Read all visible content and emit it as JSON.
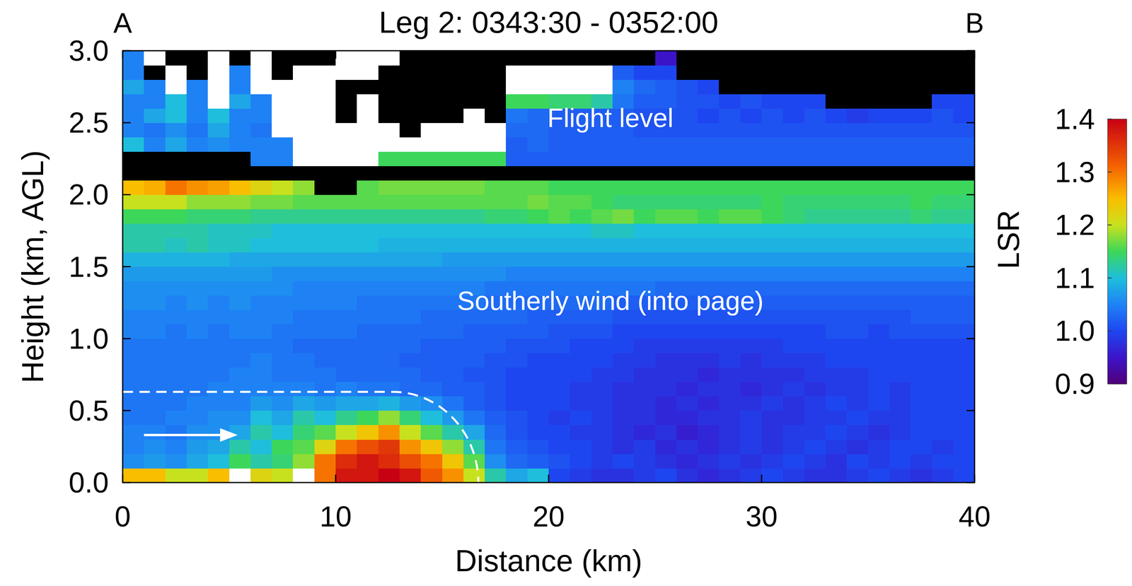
{
  "chart_data": {
    "type": "heatmap",
    "title": "Leg 2: 0343:30 - 0352:00",
    "corner_labels": [
      "A",
      "B"
    ],
    "x_label": "Distance (km)",
    "y_label": "Height (km, AGL)",
    "annotations": [
      "Flight level",
      "Southerly wind (into page)"
    ],
    "xlim": [
      0,
      40
    ],
    "ylim": [
      0,
      3
    ],
    "xticks": [
      0,
      10,
      20,
      30,
      40
    ],
    "yticks": [
      {
        "value": 0,
        "label": "0.0"
      },
      0.5,
      {
        "value": 1,
        "label": "1.0"
      },
      1.5,
      {
        "value": 2,
        "label": "2.0"
      },
      2.5,
      {
        "value": 3,
        "label": "3.0"
      }
    ],
    "grid": false,
    "x_bins": [
      0,
      1,
      2,
      3,
      4,
      5,
      6,
      7,
      8,
      9,
      10,
      11,
      12,
      13,
      14,
      15,
      16,
      17,
      18,
      19,
      20,
      21,
      22,
      23,
      24,
      25,
      26,
      27,
      28,
      29,
      30,
      31,
      32,
      33,
      34,
      35,
      36,
      37,
      38,
      39,
      40
    ],
    "y_bins": [
      0,
      0.1,
      0.2,
      0.3,
      0.4,
      0.5,
      0.6,
      0.7,
      0.8,
      0.9,
      1.0,
      1.1,
      1.2,
      1.3,
      1.4,
      1.5,
      1.6,
      1.7,
      1.8,
      1.9,
      2.0,
      2.1,
      2.2,
      2.3,
      2.4,
      2.5,
      2.6,
      2.7,
      2.8,
      2.9,
      3.0
    ],
    "colorbar": {
      "label": "LSR",
      "range": [
        0.9,
        1.4
      ],
      "ticks": [
        0.9,
        {
          "value": 1,
          "label": "1.0"
        },
        1.1,
        1.2,
        1.3,
        1.4
      ]
    },
    "cells": [
      [
        1.25,
        1.25,
        1.2,
        1.2,
        1.25,
        10,
        1.22,
        1.2,
        10,
        1.3,
        1.38,
        1.38,
        1.4,
        1.38,
        1.32,
        1.28,
        1.2,
        1.12,
        1.08,
        1.1,
        1.0,
        0.99,
        0.98,
        0.98,
        0.99,
        1.0,
        0.98,
        0.97,
        0.98,
        0.99,
        1.0,
        0.99,
        0.98,
        0.98,
        0.99,
        1.0,
        0.99,
        0.98,
        0.99,
        1.0
      ],
      [
        1.06,
        1.07,
        1.06,
        1.08,
        1.1,
        1.15,
        1.12,
        1.14,
        1.18,
        1.3,
        1.36,
        1.38,
        1.36,
        1.33,
        1.3,
        1.24,
        1.16,
        1.06,
        1.03,
        1.02,
        1.01,
        1.0,
        0.99,
        1.0,
        0.99,
        0.98,
        0.97,
        0.98,
        0.99,
        0.98,
        0.99,
        1.0,
        0.99,
        0.98,
        1.0,
        0.99,
        1.0,
        0.99,
        1.0,
        1.0
      ],
      [
        1.05,
        1.06,
        1.05,
        1.07,
        1.08,
        1.12,
        1.1,
        1.15,
        1.16,
        1.22,
        1.3,
        1.33,
        1.35,
        1.28,
        1.24,
        1.18,
        1.12,
        1.04,
        1.02,
        1.01,
        1.0,
        1.0,
        0.99,
        0.98,
        0.99,
        0.97,
        0.98,
        0.97,
        0.98,
        0.99,
        0.98,
        0.99,
        1.0,
        0.99,
        0.98,
        0.99,
        1.0,
        1.0,
        0.99,
        1.0
      ],
      [
        1.05,
        1.05,
        1.04,
        1.06,
        1.06,
        1.08,
        1.12,
        1.1,
        1.14,
        1.16,
        1.2,
        1.24,
        1.28,
        1.2,
        1.16,
        1.12,
        1.08,
        1.03,
        1.01,
        1.0,
        1.0,
        0.99,
        0.99,
        0.98,
        0.97,
        0.98,
        0.96,
        0.97,
        0.98,
        0.99,
        0.98,
        0.99,
        0.99,
        1.0,
        0.99,
        0.98,
        0.99,
        1.0,
        1.0,
        1.0
      ],
      [
        1.04,
        1.04,
        1.05,
        1.05,
        1.06,
        1.06,
        1.1,
        1.08,
        1.12,
        1.1,
        1.13,
        1.15,
        1.18,
        1.14,
        1.1,
        1.07,
        1.04,
        1.02,
        1.01,
        1.0,
        0.99,
        1.0,
        0.99,
        0.98,
        0.98,
        0.97,
        0.97,
        0.98,
        0.98,
        0.99,
        0.98,
        0.98,
        0.99,
        0.99,
        1.0,
        0.99,
        0.99,
        1.0,
        1.0,
        1.0
      ],
      [
        1.04,
        1.04,
        1.04,
        1.05,
        1.05,
        1.05,
        1.07,
        1.06,
        1.08,
        1.07,
        1.08,
        1.08,
        1.09,
        1.07,
        1.06,
        1.04,
        1.02,
        1.01,
        1.0,
        1.0,
        1.0,
        0.99,
        0.99,
        0.98,
        0.98,
        0.97,
        0.98,
        0.97,
        0.98,
        0.98,
        0.99,
        0.98,
        0.99,
        1.0,
        0.99,
        1.0,
        0.99,
        1.0,
        1.0,
        1.0
      ],
      [
        1.04,
        1.04,
        1.04,
        1.04,
        1.05,
        1.05,
        1.05,
        1.05,
        1.05,
        1.04,
        1.05,
        1.04,
        1.04,
        1.03,
        1.03,
        1.02,
        1.02,
        1.01,
        1.0,
        1.0,
        1.0,
        0.99,
        0.99,
        0.98,
        0.98,
        0.98,
        0.97,
        0.98,
        0.98,
        0.97,
        0.98,
        0.99,
        0.98,
        0.99,
        0.99,
        1.0,
        0.99,
        1.0,
        1.0,
        1.0
      ],
      [
        1.04,
        1.04,
        1.04,
        1.04,
        1.04,
        1.05,
        1.05,
        1.04,
        1.04,
        1.04,
        1.03,
        1.03,
        1.03,
        1.03,
        1.02,
        1.02,
        1.01,
        1.01,
        1.0,
        1.0,
        1.0,
        1.0,
        0.99,
        0.99,
        0.98,
        0.98,
        0.98,
        0.97,
        0.98,
        0.98,
        0.98,
        0.98,
        0.99,
        0.99,
        0.99,
        1.0,
        1.0,
        1.0,
        1.0,
        1.0
      ],
      [
        1.04,
        1.04,
        1.04,
        1.04,
        1.04,
        1.04,
        1.05,
        1.04,
        1.04,
        1.03,
        1.03,
        1.03,
        1.03,
        1.02,
        1.02,
        1.02,
        1.02,
        1.01,
        1.01,
        1.0,
        1.0,
        1.0,
        1.0,
        0.99,
        0.99,
        0.98,
        0.98,
        0.98,
        0.99,
        0.98,
        0.99,
        0.99,
        0.99,
        1.0,
        1.0,
        1.0,
        1.0,
        1.0,
        1.0,
        1.0
      ],
      [
        1.04,
        1.04,
        1.04,
        1.04,
        1.04,
        1.04,
        1.04,
        1.04,
        1.03,
        1.03,
        1.03,
        1.03,
        1.03,
        1.03,
        1.02,
        1.02,
        1.02,
        1.02,
        1.01,
        1.01,
        1.01,
        1.0,
        1.0,
        1.0,
        0.99,
        0.99,
        0.99,
        0.99,
        0.99,
        0.99,
        0.99,
        1.0,
        1.0,
        1.0,
        1.0,
        1.0,
        1.0,
        1.0,
        1.0,
        1.0
      ],
      [
        1.05,
        1.05,
        1.04,
        1.05,
        1.04,
        1.05,
        1.05,
        1.04,
        1.04,
        1.04,
        1.04,
        1.03,
        1.03,
        1.03,
        1.03,
        1.03,
        1.02,
        1.02,
        1.02,
        1.02,
        1.01,
        1.01,
        1.01,
        1.0,
        1.0,
        1.0,
        1.0,
        1.0,
        1.0,
        1.0,
        1.0,
        1.0,
        1.0,
        1.01,
        1.01,
        1.0,
        1.01,
        1.01,
        1.01,
        1.01
      ],
      [
        1.05,
        1.05,
        1.05,
        1.05,
        1.05,
        1.05,
        1.05,
        1.05,
        1.04,
        1.04,
        1.04,
        1.04,
        1.04,
        1.04,
        1.03,
        1.03,
        1.03,
        1.03,
        1.03,
        1.02,
        1.02,
        1.02,
        1.02,
        1.01,
        1.01,
        1.01,
        1.01,
        1.01,
        1.01,
        1.01,
        1.01,
        1.01,
        1.01,
        1.01,
        1.01,
        1.01,
        1.01,
        1.02,
        1.02,
        1.02
      ],
      [
        1.06,
        1.06,
        1.05,
        1.06,
        1.05,
        1.06,
        1.05,
        1.05,
        1.05,
        1.05,
        1.05,
        1.04,
        1.04,
        1.04,
        1.04,
        1.04,
        1.04,
        1.03,
        1.03,
        1.03,
        1.03,
        1.03,
        1.03,
        1.02,
        1.02,
        1.02,
        1.02,
        1.02,
        1.02,
        1.02,
        1.02,
        1.02,
        1.02,
        1.02,
        1.02,
        1.02,
        1.02,
        1.02,
        1.02,
        1.02
      ],
      [
        1.06,
        1.06,
        1.06,
        1.06,
        1.06,
        1.06,
        1.06,
        1.06,
        1.05,
        1.05,
        1.05,
        1.05,
        1.05,
        1.05,
        1.05,
        1.05,
        1.05,
        1.04,
        1.04,
        1.04,
        1.04,
        1.04,
        1.04,
        1.04,
        1.04,
        1.03,
        1.03,
        1.03,
        1.03,
        1.03,
        1.03,
        1.03,
        1.03,
        1.03,
        1.03,
        1.03,
        1.03,
        1.03,
        1.03,
        1.03
      ],
      [
        1.07,
        1.07,
        1.07,
        1.07,
        1.07,
        1.07,
        1.07,
        1.06,
        1.06,
        1.06,
        1.06,
        1.06,
        1.06,
        1.06,
        1.06,
        1.06,
        1.06,
        1.06,
        1.05,
        1.05,
        1.05,
        1.05,
        1.05,
        1.05,
        1.05,
        1.05,
        1.05,
        1.05,
        1.05,
        1.05,
        1.05,
        1.05,
        1.05,
        1.05,
        1.05,
        1.05,
        1.05,
        1.05,
        1.05,
        1.05
      ],
      [
        1.09,
        1.09,
        1.09,
        1.09,
        1.09,
        1.08,
        1.08,
        1.08,
        1.08,
        1.08,
        1.08,
        1.08,
        1.08,
        1.08,
        1.08,
        1.07,
        1.07,
        1.07,
        1.07,
        1.07,
        1.07,
        1.07,
        1.07,
        1.07,
        1.07,
        1.07,
        1.07,
        1.07,
        1.07,
        1.07,
        1.07,
        1.07,
        1.07,
        1.07,
        1.07,
        1.07,
        1.07,
        1.07,
        1.07,
        1.07
      ],
      [
        1.12,
        1.12,
        1.11,
        1.12,
        1.11,
        1.11,
        1.1,
        1.1,
        1.1,
        1.1,
        1.1,
        1.1,
        1.09,
        1.09,
        1.09,
        1.09,
        1.09,
        1.09,
        1.09,
        1.09,
        1.09,
        1.09,
        1.09,
        1.09,
        1.09,
        1.09,
        1.09,
        1.09,
        1.09,
        1.09,
        1.09,
        1.09,
        1.09,
        1.09,
        1.09,
        1.09,
        1.09,
        1.09,
        1.09,
        1.09
      ],
      [
        1.12,
        1.12,
        1.12,
        1.12,
        1.11,
        1.11,
        1.11,
        1.1,
        1.1,
        1.1,
        1.1,
        1.1,
        1.1,
        1.1,
        1.1,
        1.1,
        1.1,
        1.1,
        1.1,
        1.1,
        1.1,
        1.1,
        1.11,
        1.11,
        1.1,
        1.1,
        1.1,
        1.1,
        1.1,
        1.1,
        1.1,
        1.1,
        1.1,
        1.1,
        1.1,
        1.1,
        1.1,
        1.1,
        1.1,
        1.1
      ],
      [
        1.15,
        1.15,
        1.15,
        1.14,
        1.14,
        1.14,
        1.13,
        1.13,
        1.13,
        1.13,
        1.13,
        1.13,
        1.13,
        1.13,
        1.13,
        1.13,
        1.13,
        1.14,
        1.14,
        1.15,
        1.16,
        1.15,
        1.16,
        1.17,
        1.15,
        1.16,
        1.16,
        1.15,
        1.16,
        1.16,
        1.15,
        1.14,
        1.13,
        1.13,
        1.13,
        1.13,
        1.13,
        1.14,
        1.13,
        1.13
      ],
      [
        1.2,
        1.2,
        1.2,
        1.18,
        1.18,
        1.18,
        1.17,
        1.17,
        1.16,
        1.16,
        1.16,
        1.16,
        1.16,
        1.16,
        1.16,
        1.16,
        1.16,
        1.16,
        1.16,
        1.17,
        1.16,
        1.16,
        1.15,
        1.14,
        1.14,
        1.14,
        1.14,
        1.14,
        1.14,
        1.14,
        1.15,
        1.14,
        1.14,
        1.14,
        1.14,
        1.14,
        1.14,
        1.15,
        1.14,
        1.14
      ],
      [
        1.25,
        1.26,
        1.3,
        1.28,
        1.27,
        1.25,
        1.22,
        1.2,
        1.18,
        null,
        null,
        1.16,
        1.17,
        1.17,
        1.17,
        1.17,
        1.17,
        1.16,
        1.16,
        1.16,
        1.15,
        1.15,
        1.15,
        1.15,
        1.15,
        1.15,
        1.15,
        1.15,
        1.15,
        1.15,
        1.15,
        1.15,
        1.15,
        1.15,
        1.15,
        1.15,
        1.15,
        1.15,
        1.15,
        1.15
      ],
      [
        null,
        null,
        null,
        null,
        null,
        null,
        null,
        null,
        null,
        null,
        null,
        null,
        null,
        null,
        null,
        null,
        null,
        null,
        null,
        null,
        null,
        null,
        null,
        null,
        null,
        null,
        null,
        null,
        null,
        null,
        null,
        null,
        null,
        null,
        null,
        null,
        null,
        null,
        null,
        null
      ],
      [
        null,
        null,
        null,
        null,
        null,
        null,
        1.05,
        1.05,
        10,
        10,
        10,
        10,
        1.15,
        1.15,
        1.15,
        1.15,
        1.15,
        1.15,
        1.02,
        1.02,
        1.02,
        1.02,
        1.02,
        1.02,
        1.02,
        1.02,
        1.02,
        1.02,
        1.02,
        1.02,
        1.02,
        1.02,
        1.02,
        1.02,
        1.02,
        1.02,
        1.02,
        1.02,
        1.02,
        1.02
      ],
      [
        1.1,
        1.05,
        1.08,
        1.05,
        1.06,
        1.05,
        1.05,
        1.05,
        10,
        10,
        10,
        10,
        10,
        10,
        10,
        10,
        10,
        10,
        1.02,
        1.03,
        1.02,
        1.02,
        1.02,
        1.02,
        1.02,
        1.02,
        1.02,
        1.02,
        1.02,
        1.02,
        1.02,
        1.02,
        1.02,
        1.02,
        1.02,
        1.02,
        1.02,
        1.02,
        1.02,
        1.02
      ],
      [
        1.05,
        1.04,
        1.06,
        1.04,
        1.08,
        1.05,
        1.04,
        10,
        10,
        10,
        10,
        10,
        10,
        null,
        10,
        10,
        10,
        10,
        1.03,
        1.03,
        1.02,
        1.02,
        1.02,
        1.02,
        1.01,
        1.01,
        1.01,
        1.01,
        1.01,
        1.01,
        1.01,
        1.01,
        1.01,
        1.01,
        1.01,
        1.01,
        1.01,
        1.01,
        1.01,
        1.01
      ],
      [
        1.05,
        1.08,
        1.1,
        1.05,
        1.1,
        1.05,
        1.05,
        10,
        10,
        10,
        null,
        10,
        null,
        null,
        null,
        null,
        10,
        null,
        1.04,
        1.03,
        1.02,
        1.02,
        1.02,
        1.02,
        1.01,
        1.01,
        1.01,
        1.0,
        1.01,
        1.0,
        1.01,
        1.0,
        1.01,
        1.0,
        0.99,
        1.0,
        1.0,
        1.0,
        1.01,
        1.0
      ],
      [
        1.05,
        1.05,
        1.1,
        1.05,
        10,
        1.08,
        1.05,
        10,
        10,
        10,
        null,
        10,
        null,
        null,
        null,
        null,
        null,
        null,
        1.15,
        1.15,
        1.14,
        1.14,
        1.12,
        1.04,
        1.02,
        1.02,
        1.01,
        1.01,
        1.0,
        1.01,
        1.0,
        1.0,
        1.0,
        null,
        null,
        null,
        null,
        null,
        1.0,
        1.0
      ],
      [
        1.08,
        1.05,
        10,
        1.05,
        10,
        1.05,
        10,
        10,
        10,
        10,
        null,
        null,
        null,
        null,
        null,
        null,
        null,
        null,
        10,
        10,
        10,
        10,
        10,
        1.05,
        1.03,
        1.02,
        1.01,
        1.0,
        null,
        null,
        null,
        null,
        null,
        null,
        null,
        null,
        null,
        null,
        null,
        null
      ],
      [
        1.05,
        null,
        10,
        null,
        10,
        1.05,
        10,
        null,
        10,
        10,
        10,
        10,
        null,
        null,
        null,
        null,
        null,
        null,
        10,
        10,
        10,
        10,
        10,
        1.02,
        1.0,
        1.0,
        null,
        null,
        null,
        null,
        null,
        null,
        null,
        null,
        null,
        null,
        null,
        null,
        null,
        null
      ],
      [
        1.05,
        10,
        null,
        null,
        10,
        null,
        10,
        null,
        null,
        null,
        10,
        10,
        10,
        null,
        null,
        null,
        null,
        null,
        null,
        null,
        null,
        null,
        null,
        null,
        null,
        0.95,
        null,
        null,
        null,
        null,
        null,
        null,
        null,
        null,
        null,
        null,
        null,
        null,
        null,
        null
      ]
    ]
  }
}
